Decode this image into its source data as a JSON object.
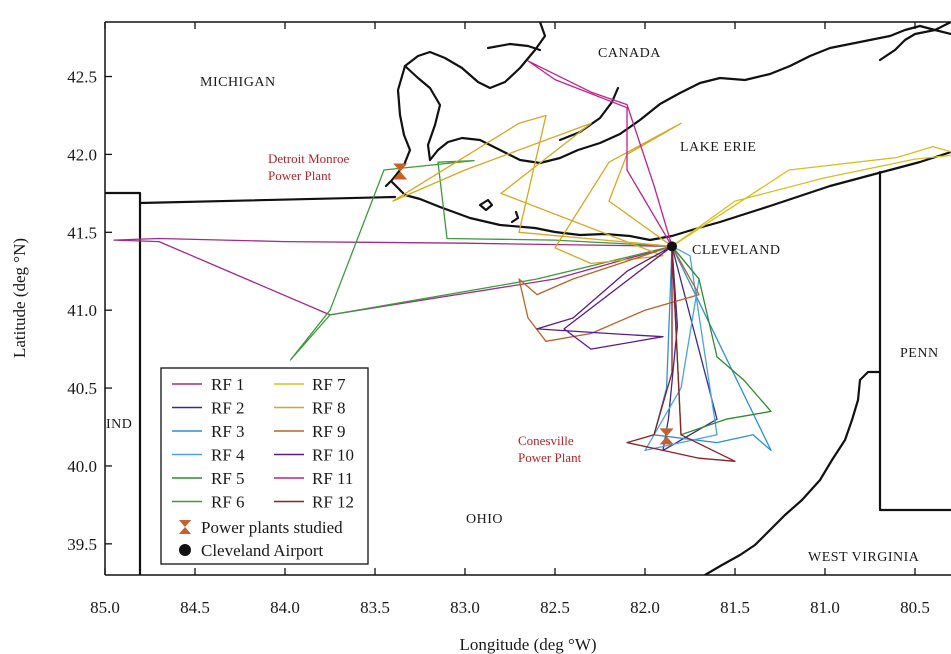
{
  "axes": {
    "xlabel": "Longitude (deg °W)",
    "ylabel": "Latitude (deg °N)",
    "x_ticks": [
      "85.0",
      "84.5",
      "84.0",
      "83.5",
      "83.0",
      "82.5",
      "82.0",
      "81.5",
      "81.0",
      "80.5"
    ],
    "y_ticks": [
      "42.5",
      "42.0",
      "41.5",
      "41.0",
      "40.5",
      "40.0",
      "39.5"
    ],
    "xlim": [
      85.0,
      80.3
    ],
    "ylim": [
      39.3,
      42.85
    ]
  },
  "regions": {
    "michigan": "MICHIGAN",
    "canada": "CANADA",
    "lake_erie": "LAKE ERIE",
    "cleveland": "CLEVELAND",
    "penn": "PENN",
    "ind": "IND",
    "ohio": "OHIO",
    "west_virginia": "WEST VIRGINIA"
  },
  "plants": {
    "detroit_line1": "Detroit Monroe",
    "detroit_line2": "Power Plant",
    "conesville_line1": "Conesville",
    "conesville_line2": "Power Plant",
    "detroit": {
      "lon": 83.36,
      "lat": 41.89
    },
    "conesville": {
      "lon": 81.88,
      "lat": 40.19
    }
  },
  "airport": {
    "lon": 81.85,
    "lat": 41.41
  },
  "legend": {
    "col1": [
      {
        "label": "RF 1",
        "color": "#a02b8c"
      },
      {
        "label": "RF 2",
        "color": "#3a2a8a"
      },
      {
        "label": "RF 3",
        "color": "#2f8fd0"
      },
      {
        "label": "RF 4",
        "color": "#4aa3e0"
      },
      {
        "label": "RF 5",
        "color": "#2e8b2e"
      },
      {
        "label": "RF 6",
        "color": "#3d9a3d"
      }
    ],
    "col2": [
      {
        "label": "RF 7",
        "color": "#d4c020"
      },
      {
        "label": "RF 8",
        "color": "#d4a820"
      },
      {
        "label": "RF 9",
        "color": "#b8622a"
      },
      {
        "label": "RF 10",
        "color": "#5a1a8c"
      },
      {
        "label": "RF 11",
        "color": "#c0208a"
      },
      {
        "label": "RF 12",
        "color": "#8a2028"
      }
    ],
    "plants_label": "Power plants studied",
    "airport_label": "Cleveland Airport",
    "plants_color": "#c8602a",
    "airport_color": "#111111"
  },
  "tracks": [
    {
      "name": "RF 1",
      "color": "#a02b8c",
      "pts": [
        [
          81.85,
          41.41
        ],
        [
          83.0,
          41.43
        ],
        [
          84.0,
          41.44
        ],
        [
          84.7,
          41.46
        ],
        [
          84.95,
          41.45
        ],
        [
          84.7,
          41.44
        ],
        [
          83.75,
          40.97
        ],
        [
          82.5,
          41.2
        ],
        [
          81.85,
          41.41
        ]
      ]
    },
    {
      "name": "RF 2",
      "color": "#3a2a8a",
      "pts": [
        [
          81.85,
          41.41
        ],
        [
          81.82,
          40.9
        ],
        [
          81.87,
          40.3
        ],
        [
          81.9,
          40.1
        ],
        [
          81.6,
          40.3
        ],
        [
          81.85,
          41.41
        ]
      ]
    },
    {
      "name": "RF 3",
      "color": "#2f8fd0",
      "pts": [
        [
          81.85,
          41.41
        ],
        [
          81.88,
          40.5
        ],
        [
          81.95,
          40.2
        ],
        [
          81.6,
          40.15
        ],
        [
          81.4,
          40.2
        ],
        [
          81.3,
          40.1
        ],
        [
          81.85,
          41.41
        ]
      ]
    },
    {
      "name": "RF 4",
      "color": "#4aa3e0",
      "pts": [
        [
          81.85,
          41.41
        ],
        [
          81.7,
          41.2
        ],
        [
          81.8,
          40.5
        ],
        [
          82.0,
          40.1
        ],
        [
          81.6,
          40.2
        ],
        [
          81.75,
          41.35
        ],
        [
          81.85,
          41.41
        ]
      ]
    },
    {
      "name": "RF 5",
      "color": "#2e8b2e",
      "pts": [
        [
          81.85,
          41.41
        ],
        [
          81.7,
          41.2
        ],
        [
          81.6,
          40.7
        ],
        [
          81.45,
          40.55
        ],
        [
          81.3,
          40.35
        ],
        [
          81.55,
          40.3
        ],
        [
          81.8,
          40.2
        ],
        [
          81.85,
          41.41
        ]
      ]
    },
    {
      "name": "RF 6",
      "color": "#3d9a3d",
      "pts": [
        [
          81.85,
          41.41
        ],
        [
          82.5,
          41.45
        ],
        [
          83.1,
          41.46
        ],
        [
          83.15,
          41.95
        ],
        [
          82.95,
          41.96
        ],
        [
          83.45,
          41.9
        ],
        [
          83.75,
          41.0
        ],
        [
          83.97,
          40.68
        ],
        [
          83.75,
          40.97
        ],
        [
          82.6,
          41.2
        ],
        [
          81.85,
          41.41
        ]
      ]
    },
    {
      "name": "RF 7",
      "color": "#d4c020",
      "pts": [
        [
          81.85,
          41.41
        ],
        [
          81.5,
          41.7
        ],
        [
          81.0,
          41.85
        ],
        [
          80.5,
          41.97
        ],
        [
          80.25,
          42.0
        ],
        [
          80.4,
          42.05
        ],
        [
          80.6,
          41.98
        ],
        [
          81.2,
          41.9
        ],
        [
          81.85,
          41.41
        ]
      ]
    },
    {
      "name": "RF 8",
      "color": "#d4a820",
      "pts": [
        [
          81.85,
          41.41
        ],
        [
          82.2,
          41.7
        ],
        [
          82.1,
          42.0
        ],
        [
          81.8,
          42.2
        ],
        [
          82.2,
          41.95
        ],
        [
          82.5,
          41.4
        ],
        [
          82.3,
          41.3
        ],
        [
          81.9,
          41.35
        ],
        [
          82.8,
          41.75
        ],
        [
          82.3,
          42.2
        ],
        [
          83.0,
          41.9
        ],
        [
          83.4,
          41.7
        ],
        [
          82.7,
          42.2
        ],
        [
          82.55,
          42.25
        ],
        [
          82.7,
          41.5
        ],
        [
          81.85,
          41.41
        ]
      ]
    },
    {
      "name": "RF 9",
      "color": "#b8622a",
      "pts": [
        [
          81.85,
          41.41
        ],
        [
          82.4,
          41.2
        ],
        [
          82.6,
          41.1
        ],
        [
          82.7,
          41.2
        ],
        [
          82.65,
          40.95
        ],
        [
          82.55,
          40.8
        ],
        [
          82.3,
          40.85
        ],
        [
          82.0,
          41.0
        ],
        [
          81.7,
          41.1
        ],
        [
          81.85,
          41.41
        ]
      ]
    },
    {
      "name": "RF 10",
      "color": "#5a1a8c",
      "pts": [
        [
          81.85,
          41.41
        ],
        [
          82.1,
          41.25
        ],
        [
          82.4,
          40.95
        ],
        [
          82.6,
          40.88
        ],
        [
          82.2,
          40.85
        ],
        [
          81.9,
          40.83
        ],
        [
          82.3,
          40.75
        ],
        [
          82.45,
          40.88
        ],
        [
          81.85,
          41.41
        ]
      ]
    },
    {
      "name": "RF 11",
      "color": "#c0208a",
      "pts": [
        [
          81.85,
          41.41
        ],
        [
          82.1,
          41.9
        ],
        [
          82.1,
          42.3
        ],
        [
          82.5,
          42.48
        ],
        [
          82.65,
          42.6
        ],
        [
          82.3,
          42.4
        ],
        [
          82.1,
          42.32
        ],
        [
          81.95,
          41.8
        ],
        [
          81.85,
          41.41
        ]
      ]
    },
    {
      "name": "RF 12",
      "color": "#8a2028",
      "pts": [
        [
          81.85,
          41.41
        ],
        [
          81.85,
          40.6
        ],
        [
          81.95,
          40.2
        ],
        [
          82.1,
          40.15
        ],
        [
          81.9,
          40.1
        ],
        [
          81.7,
          40.05
        ],
        [
          81.5,
          40.03
        ],
        [
          81.8,
          40.2
        ],
        [
          81.85,
          41.41
        ]
      ]
    }
  ]
}
